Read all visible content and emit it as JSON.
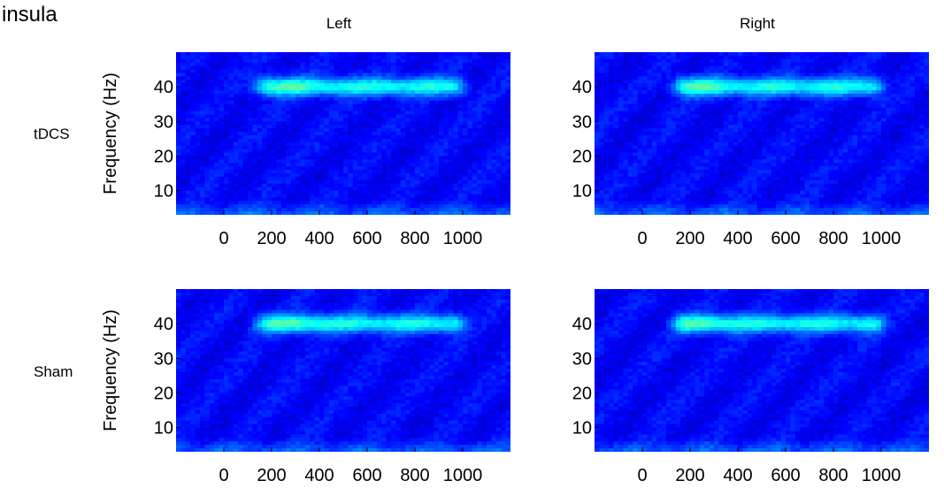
{
  "figure": {
    "title": "insula",
    "column_labels": [
      "Left",
      "Right"
    ],
    "row_labels": [
      "tDCS",
      "Sham"
    ]
  },
  "chart_data": [
    {
      "type": "heatmap",
      "condition": "tDCS",
      "hemisphere": "Left",
      "ylabel": "Frequency (Hz)",
      "xlim": [
        -200,
        1200
      ],
      "ylim": [
        3,
        50
      ],
      "xticks": [
        0,
        200,
        400,
        600,
        800,
        1000
      ],
      "yticks": [
        10,
        20,
        30,
        40
      ],
      "band": {
        "freq": 40,
        "t_start": 120,
        "t_end": 1000,
        "peak_t": 250
      }
    },
    {
      "type": "heatmap",
      "condition": "tDCS",
      "hemisphere": "Right",
      "ylabel": "",
      "xlim": [
        -200,
        1200
      ],
      "ylim": [
        3,
        50
      ],
      "xticks": [
        0,
        200,
        400,
        600,
        800,
        1000
      ],
      "yticks": [
        10,
        20,
        30,
        40
      ],
      "band": {
        "freq": 40,
        "t_start": 120,
        "t_end": 1000,
        "peak_t": 220
      }
    },
    {
      "type": "heatmap",
      "condition": "Sham",
      "hemisphere": "Left",
      "ylabel": "Frequency (Hz)",
      "xlim": [
        -200,
        1200
      ],
      "ylim": [
        3,
        50
      ],
      "xticks": [
        0,
        200,
        400,
        600,
        800,
        1000
      ],
      "yticks": [
        10,
        20,
        30,
        40
      ],
      "band": {
        "freq": 40,
        "t_start": 120,
        "t_end": 1000,
        "peak_t": 300
      }
    },
    {
      "type": "heatmap",
      "condition": "Sham",
      "hemisphere": "Right",
      "ylabel": "",
      "xlim": [
        -200,
        1200
      ],
      "ylim": [
        3,
        50
      ],
      "xticks": [
        0,
        200,
        400,
        600,
        800,
        1000
      ],
      "yticks": [
        10,
        20,
        30,
        40
      ],
      "band": {
        "freq": 40,
        "t_start": 120,
        "t_end": 1000,
        "peak_t": 250
      }
    }
  ]
}
